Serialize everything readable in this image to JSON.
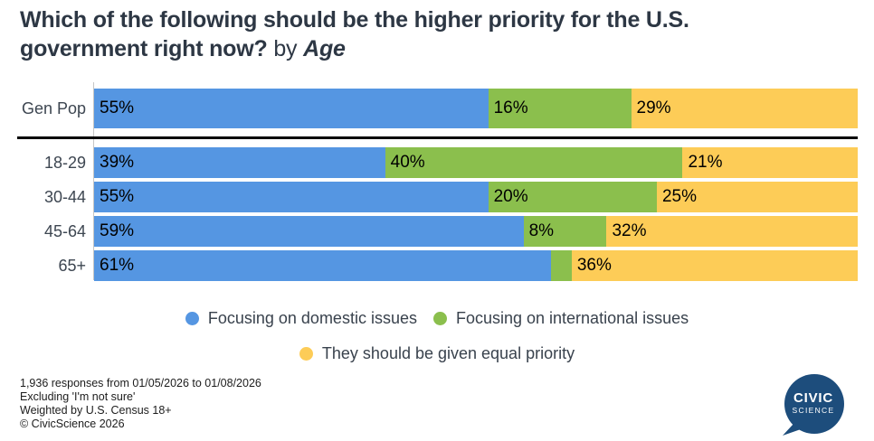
{
  "title": {
    "line1": "Which of the following should be the higher priority for the U.S.",
    "line2": "government right now?",
    "by": "by",
    "group": "Age"
  },
  "colors": {
    "domestic": "#5596e2",
    "international": "#8bbf4d",
    "equal": "#fdcc57",
    "title_text": "#2d3744",
    "separator": "#000000",
    "logo_navy": "#1d4d7c"
  },
  "chart_data": {
    "type": "bar",
    "subtype": "horizontal-stacked-100pct",
    "title": "Which of the following should be the higher priority for the U.S. government right now? by Age",
    "categories": [
      "Gen Pop",
      "18-29",
      "30-44",
      "45-64",
      "65+"
    ],
    "series": [
      {
        "name": "Focusing on domestic issues",
        "color": "#5596e2",
        "values": [
          55,
          39,
          55,
          59,
          61
        ]
      },
      {
        "name": "Focusing on international issues",
        "color": "#8bbf4d",
        "values": [
          16,
          40,
          20,
          8,
          3
        ]
      },
      {
        "name": "They should be given equal priority",
        "color": "#fdcc57",
        "values": [
          29,
          21,
          25,
          32,
          36
        ]
      }
    ],
    "segment_labels": [
      [
        "55%",
        "16%",
        "29%"
      ],
      [
        "39%",
        "40%",
        "21%"
      ],
      [
        "55%",
        "20%",
        "25%"
      ],
      [
        "59%",
        "8%",
        "32%"
      ],
      [
        "61%",
        "",
        "36%"
      ]
    ],
    "value_suffix": "%",
    "xlim": [
      0,
      100
    ],
    "grid": false,
    "legend_position": "bottom",
    "notes": "Gen Pop row separated from age rows by a thick black divider; 65+ international segment (~3%) is unlabeled in the chart."
  },
  "legend": {
    "rows": [
      [
        {
          "label": "Focusing on domestic issues",
          "color": "#5596e2"
        },
        {
          "label": "Focusing on international issues",
          "color": "#8bbf4d"
        }
      ],
      [
        {
          "label": "They should be given equal priority",
          "color": "#fdcc57"
        }
      ]
    ]
  },
  "footer": {
    "lines": [
      "1,936 responses from 01/05/2026 to 01/08/2026",
      "Excluding 'I'm not sure'",
      "Weighted by U.S. Census 18+",
      "© CivicScience 2026"
    ]
  },
  "logo": {
    "line1": "CIVIC",
    "line2": "SCIENCE"
  }
}
